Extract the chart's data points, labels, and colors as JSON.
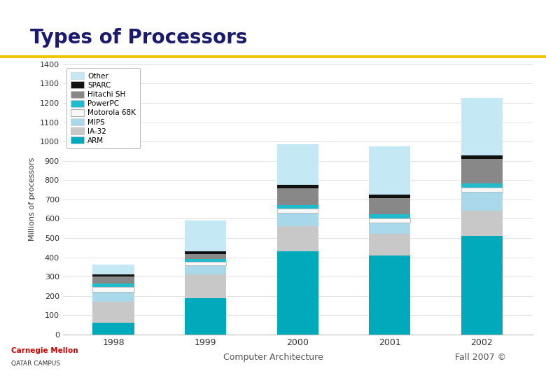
{
  "title": "Types of Processors",
  "title_color": "#1a1a6e",
  "title_fontsize": 20,
  "ylabel": "Millions of processors",
  "years": [
    "1998",
    "1999",
    "2000",
    "2001",
    "2002"
  ],
  "series": {
    "ARM": [
      60,
      190,
      430,
      410,
      510
    ],
    "IA-32": [
      110,
      120,
      130,
      110,
      130
    ],
    "MIPS": [
      50,
      50,
      70,
      60,
      100
    ],
    "Motorola 68K": [
      25,
      18,
      22,
      22,
      22
    ],
    "PowerPC": [
      18,
      12,
      20,
      20,
      22
    ],
    "Hitachi SH": [
      38,
      28,
      85,
      85,
      125
    ],
    "SPARC": [
      12,
      12,
      18,
      18,
      18
    ],
    "Other": [
      50,
      160,
      210,
      250,
      298
    ]
  },
  "colors": {
    "ARM": "#00aabb",
    "IA-32": "#c8c8c8",
    "MIPS": "#a8d8ea",
    "Motorola 68K": "#f8f8f8",
    "PowerPC": "#22bbcc",
    "Hitachi SH": "#888888",
    "SPARC": "#111111",
    "Other": "#c5e8f5"
  },
  "ylim": [
    0,
    1400
  ],
  "yticks": [
    0,
    100,
    200,
    300,
    400,
    500,
    600,
    700,
    800,
    900,
    1000,
    1100,
    1200,
    1300,
    1400
  ],
  "background_color": "#ffffff",
  "plot_bg_color": "#ffffff",
  "title_line_color": "#f0c400",
  "title_line_thickness": 3,
  "footer_text_center": "Computer Architecture",
  "footer_text_right": "Fall 2007 ©",
  "footer_color": "#555555",
  "carnegie_color": "#cc0000"
}
